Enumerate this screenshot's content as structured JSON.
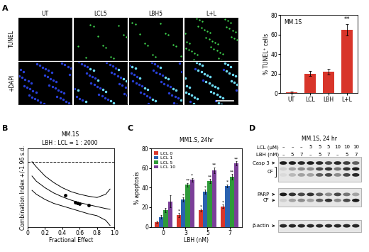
{
  "panel_letters": [
    "A",
    "B",
    "C",
    "D"
  ],
  "microscopy": {
    "columns": [
      "UT",
      "LCL5",
      "LBH5",
      "L+L"
    ],
    "rows": [
      "TUNEL",
      "+DAPI"
    ]
  },
  "chart_data": [
    {
      "type": "bar",
      "title": "MM.1S",
      "ylabel": "% TUNEL⁺ cells",
      "categories": [
        "UT",
        "LCL",
        "LBH",
        "L+L"
      ],
      "values": [
        1,
        20,
        22,
        65
      ],
      "errors": [
        0.5,
        2.5,
        3,
        6
      ],
      "significance": [
        null,
        null,
        null,
        "**"
      ],
      "color": "#d8352a",
      "ylim": [
        0,
        80
      ],
      "yticks": [
        0,
        20,
        40,
        60,
        80
      ]
    },
    {
      "type": "line",
      "title": "MM.1S",
      "subtitle": "LBH : LCL = 1 : 2000",
      "xlabel": "Fractional Effect",
      "ylabel": "Combination Index +/-1.96 s.d.",
      "x": [
        0.05,
        0.1,
        0.2,
        0.3,
        0.4,
        0.5,
        0.6,
        0.7,
        0.8,
        0.9,
        0.95
      ],
      "series": [
        {
          "color": "#000000",
          "values": [
            1.0,
            0.92,
            0.78,
            0.68,
            0.6,
            0.54,
            0.5,
            0.47,
            0.45,
            0.5,
            0.58
          ]
        },
        {
          "color": "#000000",
          "values": [
            0.78,
            0.7,
            0.6,
            0.52,
            0.46,
            0.41,
            0.37,
            0.34,
            0.31,
            0.28,
            0.27
          ]
        },
        {
          "color": "#000000",
          "values": [
            0.56,
            0.5,
            0.42,
            0.36,
            0.32,
            0.28,
            0.24,
            0.2,
            0.17,
            0.1,
            0.02
          ]
        }
      ],
      "points": {
        "x": [
          0.43,
          0.55,
          0.57,
          0.6,
          0.7
        ],
        "y": [
          0.48,
          0.38,
          0.37,
          0.35,
          0.33
        ]
      },
      "reference_line": 1,
      "line_style": "dashed",
      "xlim": [
        0,
        1
      ],
      "xticks": [
        0,
        0.2,
        0.4,
        0.6,
        0.8,
        {
          "value": 1,
          "label": "1.0"
        }
      ],
      "ylim": [
        0,
        1.2
      ],
      "yticks": [],
      "tick_labels": "x"
    },
    {
      "type": "bar",
      "title": "MM1.S, 24hr",
      "xlabel": "LBH (nM)",
      "ylabel": "% apoptosis",
      "categories": [
        "0",
        "3",
        "5",
        "7"
      ],
      "series": [
        {
          "name": "LCL 0",
          "color": "#d8352a",
          "values": [
            5,
            12,
            17,
            21
          ],
          "errors": [
            1,
            2,
            1.5,
            2
          ],
          "significance": [
            null,
            "*",
            "*",
            "*"
          ]
        },
        {
          "name": "LCL 1",
          "color": "#2a62b0",
          "values": [
            10,
            28,
            36,
            42
          ],
          "errors": [
            2,
            2,
            2,
            1.5
          ],
          "significance": [
            null,
            "*",
            "*",
            "*"
          ]
        },
        {
          "name": "LCL 5",
          "color": "#2f9a3a",
          "values": [
            17,
            43,
            47,
            51
          ],
          "errors": [
            2,
            2,
            2,
            3
          ],
          "significance": [
            null,
            "**",
            "**",
            "**"
          ]
        },
        {
          "name": "LCL 10",
          "color": "#7b3f98",
          "values": [
            26,
            48,
            58,
            65
          ],
          "errors": [
            6,
            2,
            3,
            2
          ],
          "significance": [
            null,
            "*",
            "**",
            "**"
          ]
        }
      ],
      "legend": "upper left",
      "ylim": [
        0,
        80
      ],
      "yticks": [
        0,
        20,
        40,
        60,
        80
      ]
    }
  ],
  "western_blot": {
    "title": "MM.1S, 24 hr",
    "conditions": [
      {
        "label": "LCL (μM)",
        "lanes": [
          "–",
          "–",
          "–",
          "5",
          "5",
          "5",
          "10",
          "10",
          "10"
        ]
      },
      {
        "label": "LBH (nM)",
        "lanes": [
          "–",
          "5",
          "7",
          "–",
          "5",
          "7",
          "–",
          "5",
          "7"
        ]
      }
    ],
    "blots": [
      {
        "rows": [
          {
            "label": "Casp 3",
            "intensity": [
              0.9,
              0.9,
              0.85,
              0.9,
              0.85,
              0.7,
              0.85,
              0.75,
              0.6
            ]
          },
          {
            "intensity": [
              0.1,
              0.3,
              0.4,
              0.4,
              0.7,
              0.8,
              0.5,
              0.8,
              0.9
            ]
          },
          {
            "intensity": [
              0.05,
              0.2,
              0.3,
              0.3,
              0.6,
              0.7,
              0.4,
              0.7,
              0.85
            ]
          }
        ],
        "bracket": {
          "label": "CF",
          "rows": [
            1,
            2
          ]
        }
      },
      {
        "rows": [
          {
            "label": "PARP",
            "intensity": [
              0.9,
              0.8,
              0.7,
              0.8,
              0.6,
              0.4,
              0.7,
              0.5,
              0.3
            ]
          },
          {
            "label": "CF",
            "intensity": [
              0.1,
              0.3,
              0.4,
              0.3,
              0.6,
              0.8,
              0.4,
              0.7,
              0.9
            ]
          }
        ]
      },
      {
        "rows": [
          {
            "label": "β-actin",
            "intensity": [
              0.85,
              0.85,
              0.85,
              0.85,
              0.85,
              0.85,
              0.85,
              0.85,
              0.85
            ]
          }
        ]
      }
    ]
  }
}
